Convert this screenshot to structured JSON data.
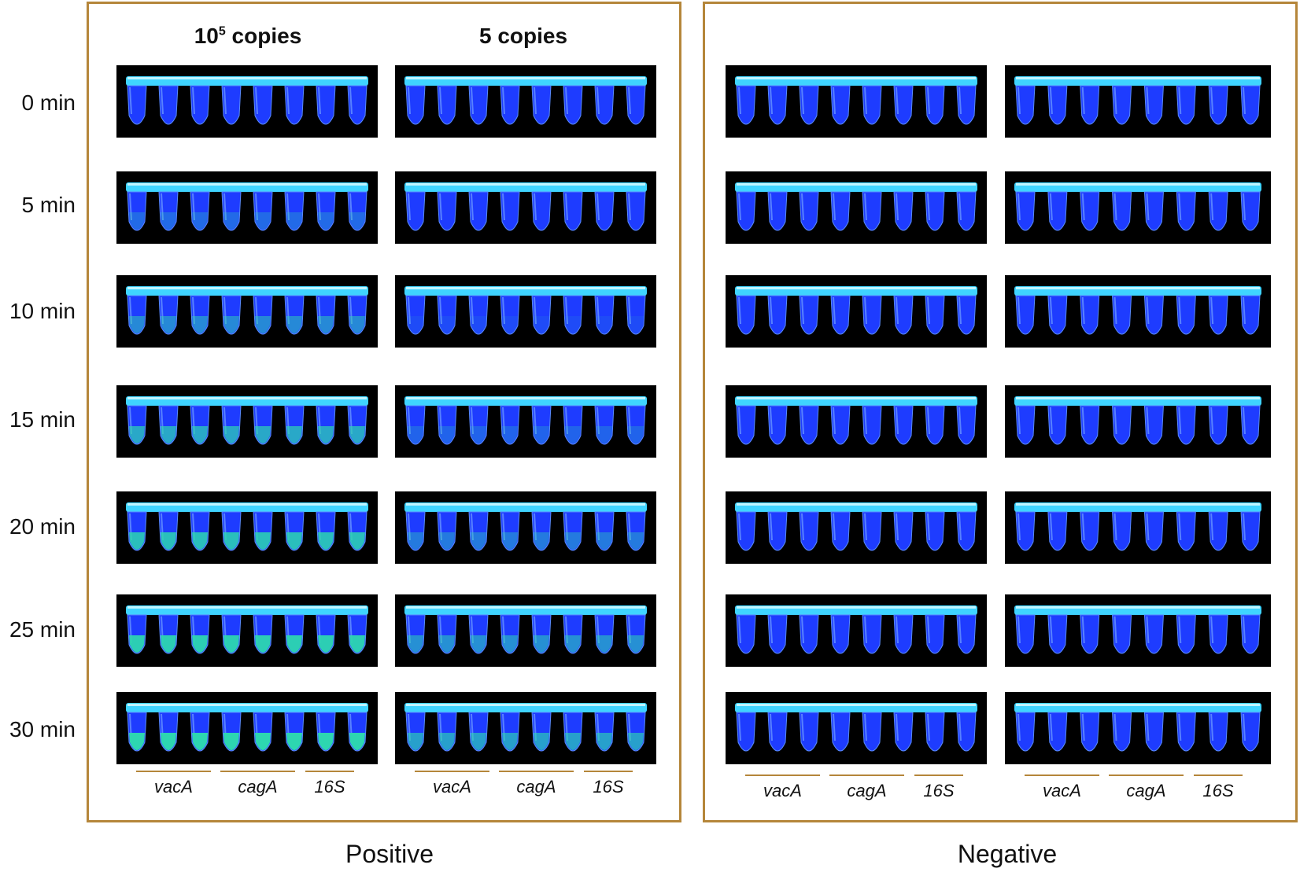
{
  "headers": {
    "high": "10",
    "high_sup": "5",
    "high_suffix": " copies",
    "low": "5 copies"
  },
  "times": [
    "0 min",
    "5 min",
    "10 min",
    "15 min",
    "20 min",
    "25 min",
    "30 min"
  ],
  "genes": [
    "vacA",
    "cagA",
    "16S"
  ],
  "panels": {
    "positive": "Positive",
    "negative": "Negative"
  },
  "colors": {
    "border": "#b5863a",
    "tube": "#1e3cff",
    "cap": "#3fd4ff",
    "positive_fluor": "#2dd6b0"
  },
  "positive_high_fluor": [
    0,
    0.3,
    0.5,
    0.7,
    0.85,
    0.95,
    1
  ],
  "positive_low_fluor": [
    0,
    0,
    0.1,
    0.25,
    0.4,
    0.55,
    0.65
  ]
}
